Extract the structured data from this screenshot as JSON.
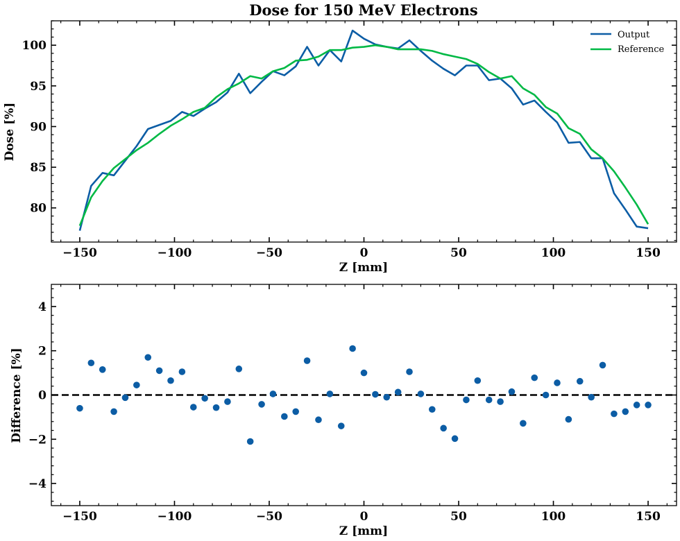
{
  "colors": {
    "output": "#0C5DA5",
    "reference": "#00B945",
    "zero_line": "#000000"
  },
  "chart_data": [
    {
      "type": "line",
      "title": "Dose for 150 MeV Electrons",
      "xlabel": "Z [mm]",
      "ylabel": "Dose [%]",
      "xlim": [
        -165,
        165
      ],
      "ylim": [
        75.8,
        103
      ],
      "xticks": [
        -150,
        -100,
        -50,
        0,
        50,
        100,
        150
      ],
      "xtick_labels": [
        "−150",
        "−100",
        "−50",
        "0",
        "50",
        "100",
        "150"
      ],
      "yticks": [
        80,
        85,
        90,
        95,
        100
      ],
      "ytick_labels": [
        "80",
        "85",
        "90",
        "95",
        "100"
      ],
      "legend_position": "top-right",
      "x": [
        -150,
        -144,
        -138,
        -132,
        -126,
        -120,
        -114,
        -108,
        -102,
        -96,
        -90,
        -84,
        -78,
        -72,
        -66,
        -60,
        -54,
        -48,
        -42,
        -36,
        -30,
        -24,
        -18,
        -12,
        -6,
        0,
        6,
        12,
        18,
        24,
        30,
        36,
        42,
        48,
        54,
        60,
        66,
        72,
        78,
        84,
        90,
        96,
        102,
        108,
        114,
        120,
        126,
        132,
        138,
        144,
        150
      ],
      "series": [
        {
          "name": "Output",
          "values": [
            77.2,
            82.7,
            84.3,
            84.0,
            85.8,
            87.6,
            89.7,
            90.2,
            90.7,
            91.8,
            91.3,
            92.2,
            93.0,
            94.2,
            96.5,
            94.1,
            95.5,
            96.8,
            96.3,
            97.4,
            99.8,
            97.5,
            99.4,
            98.0,
            101.8,
            100.8,
            100.1,
            99.8,
            99.6,
            100.6,
            99.3,
            98.1,
            97.1,
            96.3,
            97.5,
            97.5,
            95.7,
            95.9,
            94.7,
            92.7,
            93.2,
            91.8,
            90.5,
            88.0,
            88.1,
            86.1,
            86.1,
            81.8,
            79.8,
            77.7,
            77.5
          ],
          "color_key": "output"
        },
        {
          "name": "Reference",
          "values": [
            77.8,
            81.3,
            83.3,
            84.9,
            86.0,
            87.1,
            88.0,
            89.1,
            90.1,
            90.9,
            91.8,
            92.3,
            93.6,
            94.6,
            95.3,
            96.2,
            95.9,
            96.8,
            97.2,
            98.1,
            98.2,
            98.6,
            99.4,
            99.4,
            99.7,
            99.8,
            100.0,
            99.8,
            99.5,
            99.5,
            99.5,
            99.3,
            98.9,
            98.6,
            98.3,
            97.7,
            96.7,
            95.9,
            96.2,
            94.7,
            93.9,
            92.4,
            91.6,
            89.8,
            89.1,
            87.2,
            86.1,
            84.5,
            82.5,
            80.4,
            78.0
          ],
          "color_key": "reference"
        }
      ]
    },
    {
      "type": "scatter",
      "title": "",
      "xlabel": "Z [mm]",
      "ylabel": "Difference [%]",
      "xlim": [
        -165,
        165
      ],
      "ylim": [
        -5,
        5
      ],
      "xticks": [
        -150,
        -100,
        -50,
        0,
        50,
        100,
        150
      ],
      "xtick_labels": [
        "−150",
        "−100",
        "−50",
        "0",
        "50",
        "100",
        "150"
      ],
      "yticks": [
        -4,
        -2,
        0,
        2,
        4
      ],
      "ytick_labels": [
        "−4",
        "−2",
        "0",
        "2",
        "4"
      ],
      "reference_line": 0,
      "x": [
        -150,
        -144,
        -138,
        -132,
        -126,
        -120,
        -114,
        -108,
        -102,
        -96,
        -90,
        -84,
        -78,
        -72,
        -66,
        -60,
        -54,
        -48,
        -42,
        -36,
        -30,
        -24,
        -18,
        -12,
        -6,
        0,
        6,
        12,
        18,
        24,
        30,
        36,
        42,
        48,
        54,
        60,
        66,
        72,
        78,
        84,
        90,
        96,
        102,
        108,
        114,
        120,
        126,
        132,
        138,
        144,
        150
      ],
      "series": [
        {
          "name": "Difference",
          "values": [
            -0.6,
            1.45,
            1.15,
            -0.75,
            -0.12,
            0.45,
            1.7,
            1.1,
            0.65,
            1.05,
            -0.55,
            -0.15,
            -0.57,
            -0.3,
            1.18,
            -2.1,
            -0.42,
            0.05,
            -0.97,
            -0.75,
            1.55,
            -1.12,
            0.05,
            -1.4,
            2.1,
            1.0,
            0.03,
            -0.1,
            0.13,
            1.05,
            0.05,
            -0.65,
            -1.5,
            -1.97,
            -0.22,
            0.65,
            -0.22,
            -0.3,
            0.15,
            -1.28,
            0.78,
            0.0,
            0.55,
            -1.1,
            0.62,
            -0.1,
            1.35,
            -0.85,
            -0.75,
            -0.45,
            -0.45
          ],
          "color_key": "output"
        }
      ]
    }
  ]
}
